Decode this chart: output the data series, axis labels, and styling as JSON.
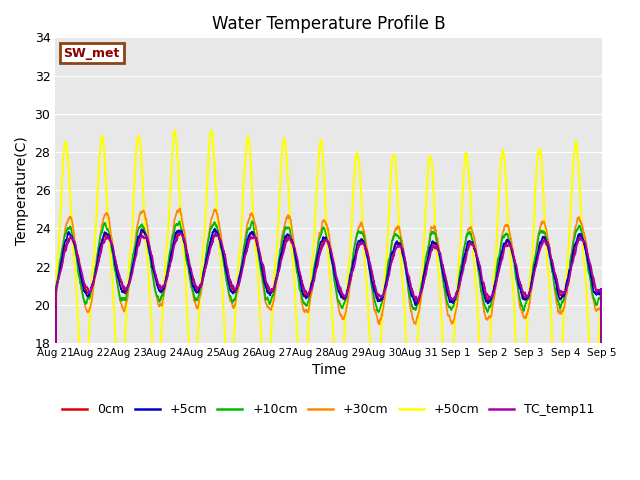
{
  "title": "Water Temperature Profile B",
  "xlabel": "Time",
  "ylabel": "Temperature(C)",
  "ylim": [
    18,
    34
  ],
  "xlim_days": 15,
  "bg_color": "#e8e8e8",
  "grid_color": "white",
  "annotation_text": "SW_met",
  "annotation_facecolor": "white",
  "annotation_edgecolor": "#8B4513",
  "annotation_textcolor": "#8B0000",
  "series": {
    "0cm": {
      "color": "#dd0000",
      "lw": 1.2
    },
    "+5cm": {
      "color": "#0000cc",
      "lw": 1.2
    },
    "+10cm": {
      "color": "#00bb00",
      "lw": 1.2
    },
    "+30cm": {
      "color": "#ff8800",
      "lw": 1.2
    },
    "+50cm": {
      "color": "#ffff00",
      "lw": 1.5
    },
    "TC_temp11": {
      "color": "#aa00aa",
      "lw": 1.2
    }
  },
  "xtick_labels": [
    "Aug 21",
    "Aug 22",
    "Aug 23",
    "Aug 24",
    "Aug 25",
    "Aug 26",
    "Aug 27",
    "Aug 28",
    "Aug 29",
    "Aug 30",
    "Aug 31",
    "Sep 1",
    "Sep 2",
    "Sep 3",
    "Sep 4",
    "Sep 5"
  ],
  "xtick_positions": [
    0,
    1,
    2,
    3,
    4,
    5,
    6,
    7,
    8,
    9,
    10,
    11,
    12,
    13,
    14,
    15
  ],
  "ytick_labels": [
    "18",
    "20",
    "22",
    "24",
    "26",
    "28",
    "30",
    "32",
    "34"
  ],
  "ytick_positions": [
    18,
    20,
    22,
    24,
    26,
    28,
    30,
    32,
    34
  ]
}
